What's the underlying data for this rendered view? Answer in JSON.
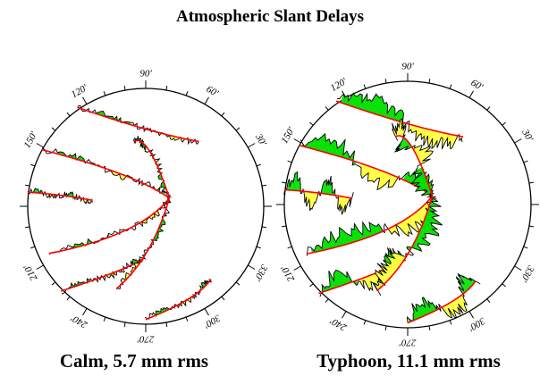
{
  "title": "Atmospheric Slant Delays",
  "panels": [
    {
      "caption": "Calm, 5.7 mm rms",
      "azimuth_labels": [
        "90'",
        "60'",
        "30'",
        "120'",
        "150'",
        "210'",
        "240'",
        "270'",
        "300'",
        "330'"
      ]
    },
    {
      "caption": "Typhoon, 11.1 mm rms",
      "azimuth_labels": [
        "90'",
        "60'",
        "30'",
        "120'",
        "150'",
        "210'",
        "240'",
        "270'",
        "300'",
        "330'"
      ]
    }
  ],
  "colors": {
    "model_line": "#ff0000",
    "positive_fill": "#00e000",
    "negative_fill": "#ffff40",
    "observation_trace": "#000000"
  }
}
